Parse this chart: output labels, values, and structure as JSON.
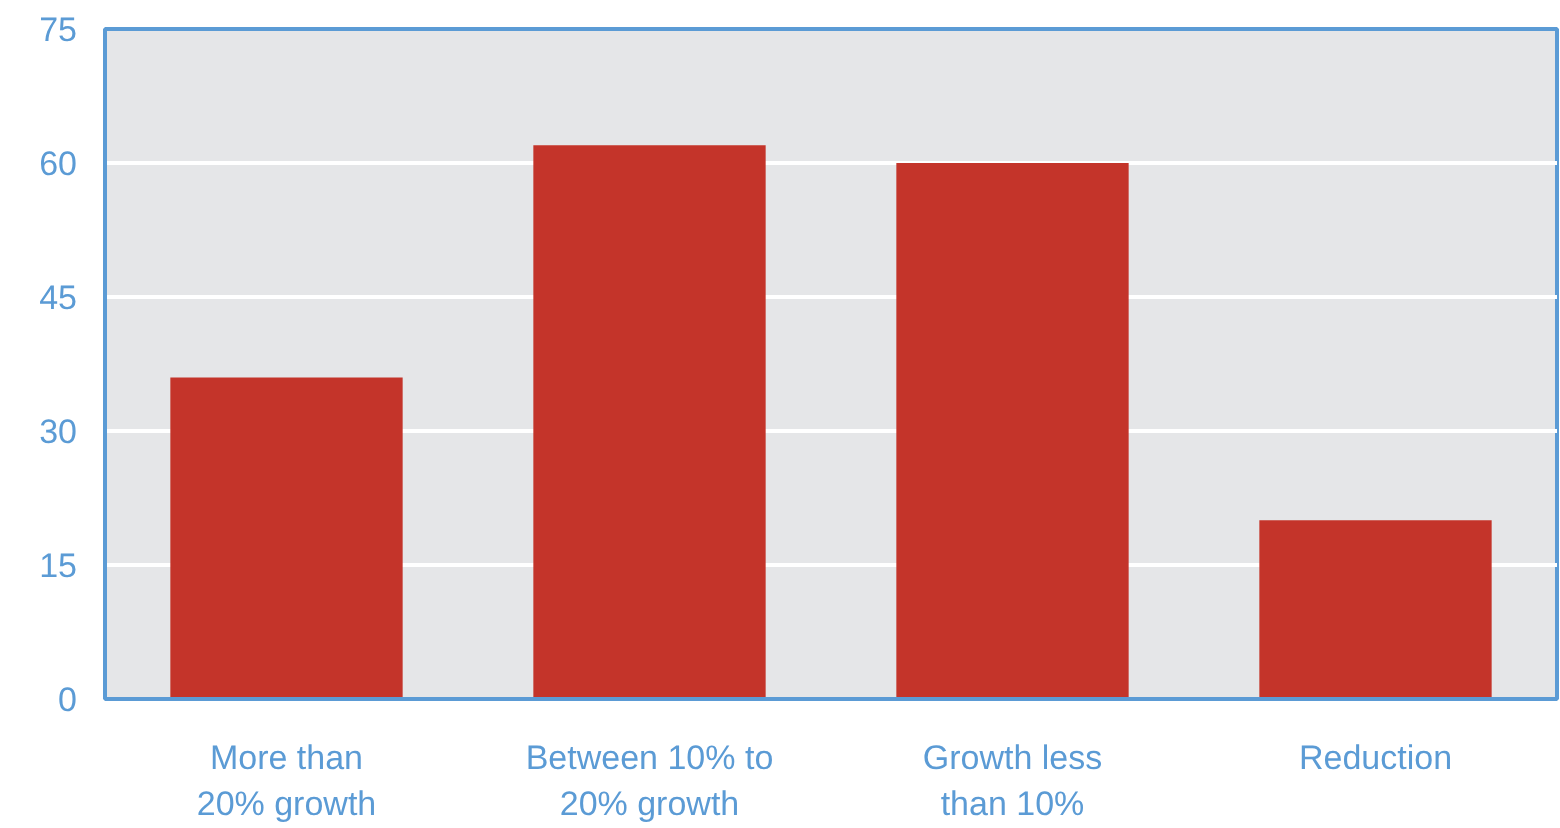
{
  "chart_data": {
    "type": "bar",
    "categories": [
      "More than 20% growth",
      "Between 10% to 20% growth",
      "Growth less than 10%",
      "Reduction"
    ],
    "values": [
      36,
      62,
      60,
      20
    ],
    "color": "#c4342a",
    "ylim": [
      0,
      75
    ],
    "yticks": [
      0,
      15,
      30,
      45,
      60,
      75
    ],
    "grid": "y"
  }
}
